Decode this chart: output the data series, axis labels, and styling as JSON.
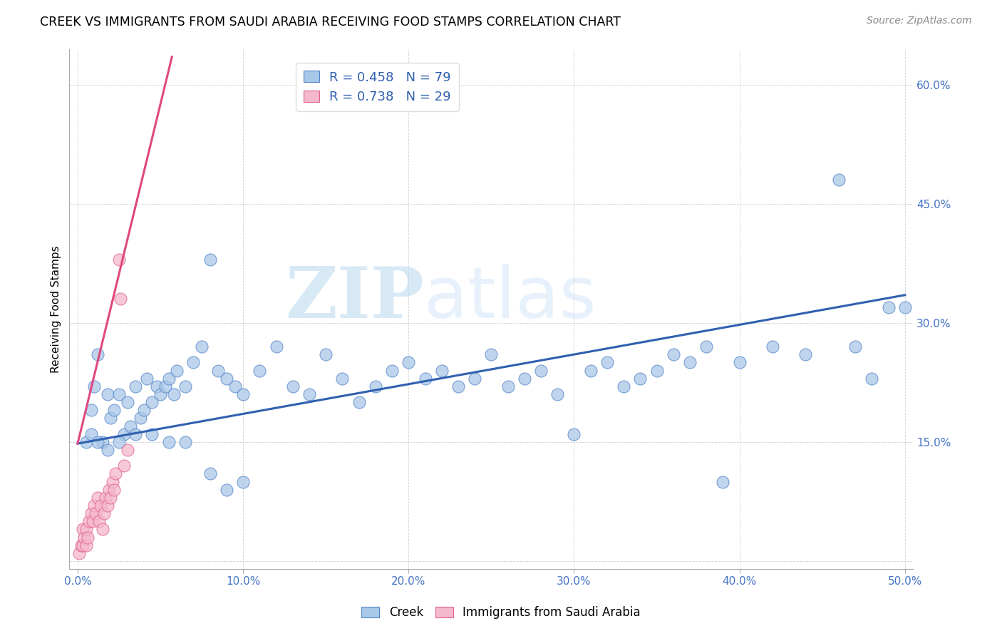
{
  "title": "CREEK VS IMMIGRANTS FROM SAUDI ARABIA RECEIVING FOOD STAMPS CORRELATION CHART",
  "source": "Source: ZipAtlas.com",
  "ylabel": "Receiving Food Stamps",
  "xlim": [
    -0.005,
    0.505
  ],
  "ylim": [
    -0.01,
    0.645
  ],
  "xticks": [
    0.0,
    0.1,
    0.2,
    0.3,
    0.4,
    0.5
  ],
  "yticks": [
    0.0,
    0.15,
    0.3,
    0.45,
    0.6
  ],
  "ytick_labels_right": [
    "",
    "15.0%",
    "30.0%",
    "45.0%",
    "60.0%"
  ],
  "xtick_labels": [
    "0.0%",
    "10.0%",
    "20.0%",
    "30.0%",
    "40.0%",
    "50.0%"
  ],
  "legend_labels": [
    "Creek",
    "Immigrants from Saudi Arabia"
  ],
  "creek_color": "#a8c8e8",
  "saudi_color": "#f5b8cc",
  "creek_edge_color": "#5585c8",
  "saudi_edge_color": "#e06090",
  "creek_line_color": "#3060b0",
  "saudi_line_color": "#e04880",
  "creek_R": 0.458,
  "creek_N": 79,
  "saudi_R": 0.738,
  "saudi_N": 29,
  "watermark_zip": "ZIP",
  "watermark_atlas": "atlas",
  "creek_trend_x0": 0.0,
  "creek_trend_y0": 0.148,
  "creek_trend_x1": 0.5,
  "creek_trend_y1": 0.335,
  "saudi_trend_x0": 0.0,
  "saudi_trend_y0": 0.148,
  "saudi_trend_x1": 0.057,
  "saudi_trend_y1": 0.635,
  "creek_x": [
    0.008,
    0.01,
    0.012,
    0.015,
    0.018,
    0.02,
    0.022,
    0.025,
    0.028,
    0.03,
    0.032,
    0.035,
    0.038,
    0.04,
    0.042,
    0.045,
    0.048,
    0.05,
    0.053,
    0.055,
    0.058,
    0.06,
    0.065,
    0.07,
    0.075,
    0.08,
    0.085,
    0.09,
    0.095,
    0.1,
    0.11,
    0.12,
    0.13,
    0.14,
    0.15,
    0.16,
    0.17,
    0.18,
    0.19,
    0.2,
    0.21,
    0.22,
    0.23,
    0.24,
    0.25,
    0.26,
    0.27,
    0.28,
    0.29,
    0.3,
    0.31,
    0.32,
    0.33,
    0.34,
    0.35,
    0.36,
    0.37,
    0.38,
    0.39,
    0.4,
    0.42,
    0.44,
    0.46,
    0.47,
    0.48,
    0.49,
    0.5,
    0.005,
    0.008,
    0.012,
    0.018,
    0.025,
    0.035,
    0.045,
    0.055,
    0.065,
    0.08,
    0.09,
    0.1
  ],
  "creek_y": [
    0.19,
    0.22,
    0.26,
    0.15,
    0.21,
    0.18,
    0.19,
    0.21,
    0.16,
    0.2,
    0.17,
    0.22,
    0.18,
    0.19,
    0.23,
    0.2,
    0.22,
    0.21,
    0.22,
    0.23,
    0.21,
    0.24,
    0.22,
    0.25,
    0.27,
    0.38,
    0.24,
    0.23,
    0.22,
    0.21,
    0.24,
    0.27,
    0.22,
    0.21,
    0.26,
    0.23,
    0.2,
    0.22,
    0.24,
    0.25,
    0.23,
    0.24,
    0.22,
    0.23,
    0.26,
    0.22,
    0.23,
    0.24,
    0.21,
    0.16,
    0.24,
    0.25,
    0.22,
    0.23,
    0.24,
    0.26,
    0.25,
    0.27,
    0.1,
    0.25,
    0.27,
    0.26,
    0.48,
    0.27,
    0.23,
    0.32,
    0.32,
    0.15,
    0.16,
    0.15,
    0.14,
    0.15,
    0.16,
    0.16,
    0.15,
    0.15,
    0.11,
    0.09,
    0.1
  ],
  "saudi_x": [
    0.001,
    0.002,
    0.003,
    0.003,
    0.004,
    0.005,
    0.005,
    0.006,
    0.007,
    0.008,
    0.009,
    0.01,
    0.011,
    0.012,
    0.013,
    0.014,
    0.015,
    0.016,
    0.017,
    0.018,
    0.019,
    0.02,
    0.021,
    0.022,
    0.023,
    0.025,
    0.026,
    0.028,
    0.03
  ],
  "saudi_y": [
    0.01,
    0.02,
    0.02,
    0.04,
    0.03,
    0.02,
    0.04,
    0.03,
    0.05,
    0.06,
    0.05,
    0.07,
    0.06,
    0.08,
    0.05,
    0.07,
    0.04,
    0.06,
    0.08,
    0.07,
    0.09,
    0.08,
    0.1,
    0.09,
    0.11,
    0.38,
    0.33,
    0.12,
    0.14
  ]
}
